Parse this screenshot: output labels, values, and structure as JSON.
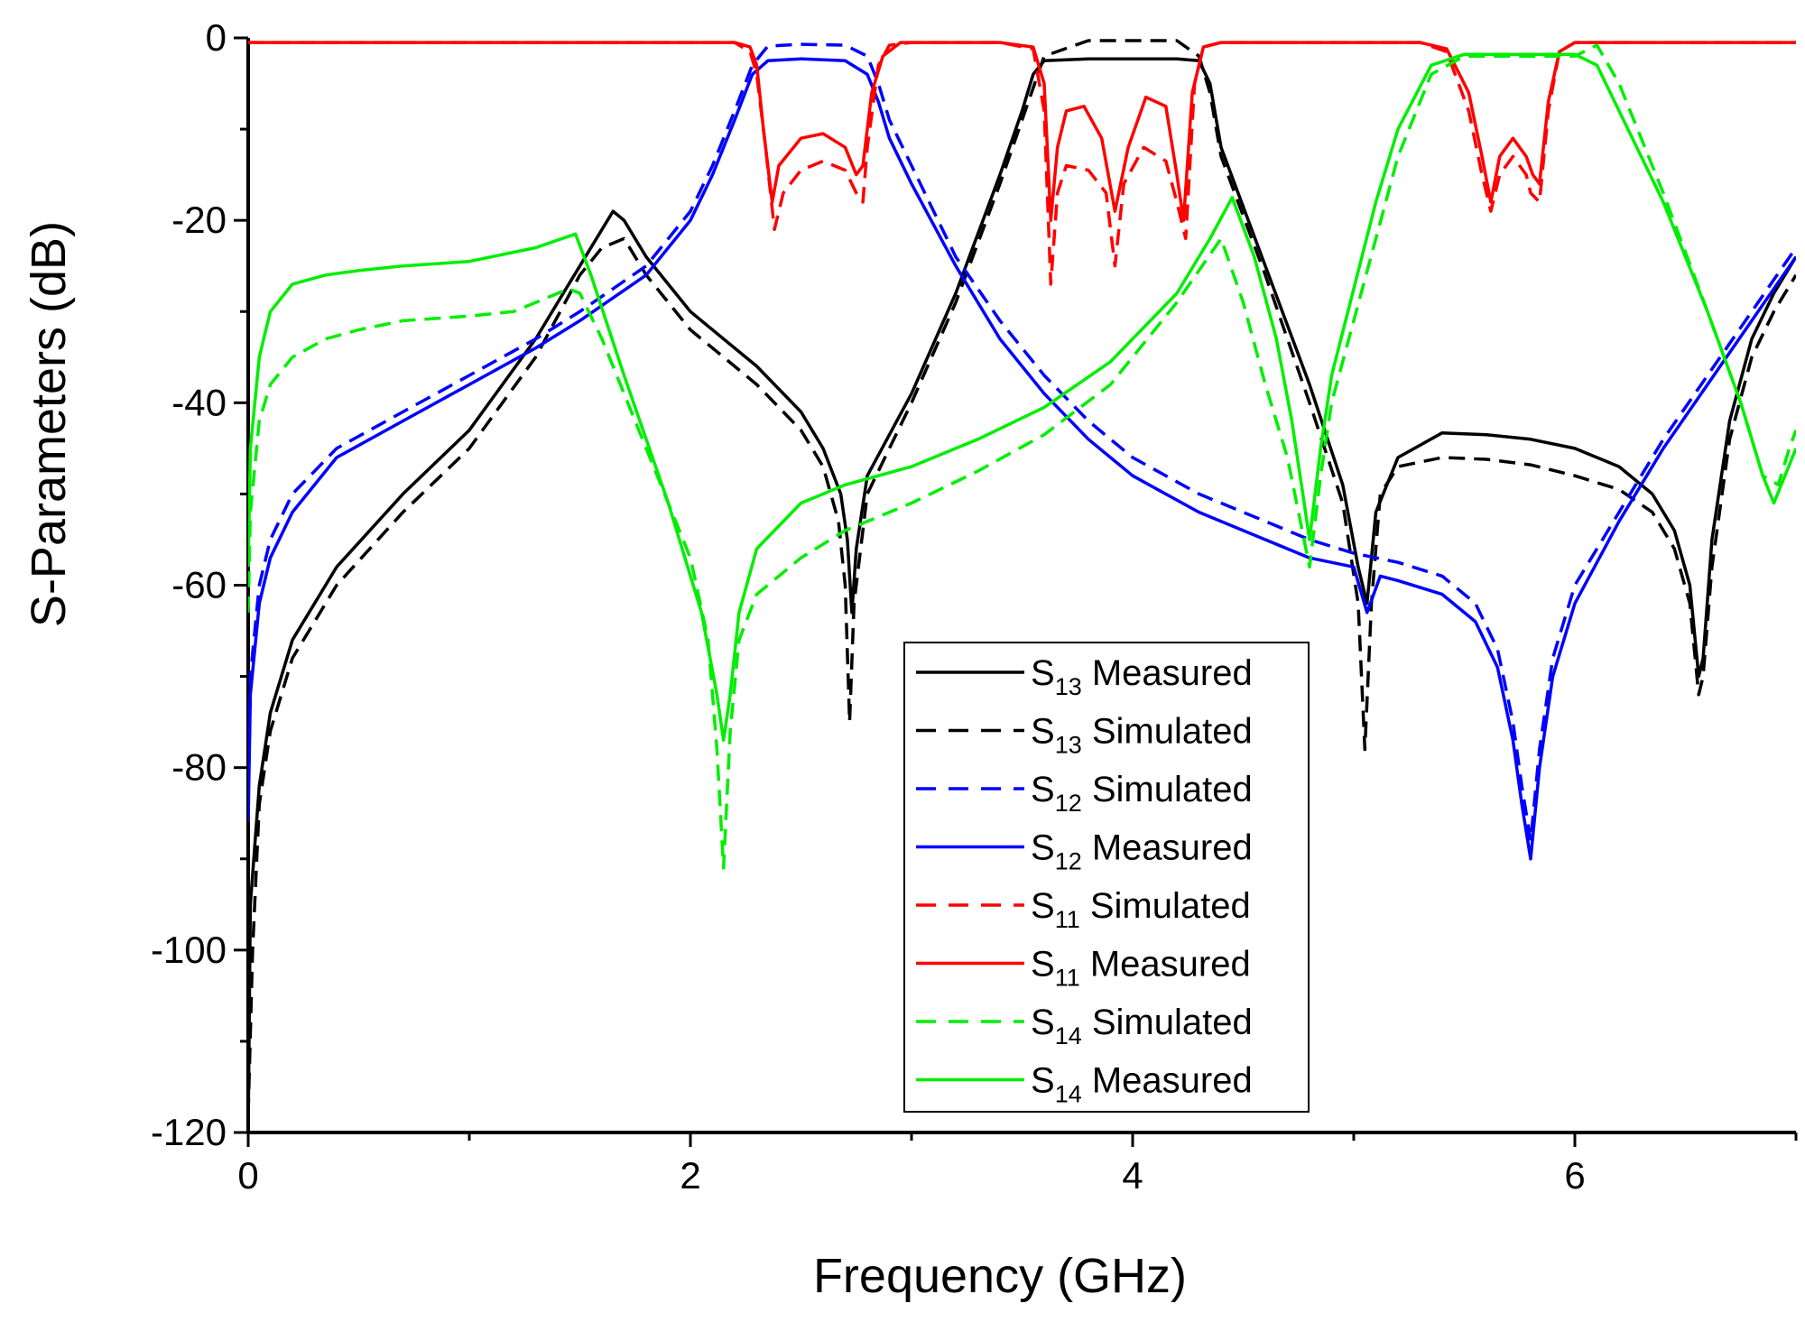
{
  "chart_data": {
    "type": "line",
    "title": "",
    "xlabel": "Frequency (GHz)",
    "ylabel": "S-Parameters (dB)",
    "xlim": [
      0,
      7
    ],
    "ylim": [
      -120,
      0
    ],
    "xticks": [
      0,
      2,
      4,
      6
    ],
    "yticks": [
      0,
      -20,
      -40,
      -60,
      -80,
      -100,
      -120
    ],
    "grid": false,
    "legend_position": "center-bottom",
    "series": [
      {
        "name": "S13 Measured",
        "param": "S",
        "sub": "13",
        "label": "Measured",
        "color": "#000000",
        "dash": "solid",
        "x": [
          0.0,
          0.01,
          0.05,
          0.1,
          0.2,
          0.4,
          0.7,
          1.0,
          1.3,
          1.5,
          1.6,
          1.65,
          1.7,
          1.8,
          2.0,
          2.3,
          2.5,
          2.6,
          2.68,
          2.71,
          2.73,
          2.75,
          2.8,
          3.0,
          3.2,
          3.4,
          3.5,
          3.55,
          3.6,
          3.8,
          4.0,
          4.2,
          4.3,
          4.35,
          4.4,
          4.6,
          4.8,
          4.95,
          5.02,
          5.06,
          5.1,
          5.2,
          5.4,
          5.6,
          5.8,
          6.0,
          6.2,
          6.35,
          6.45,
          6.52,
          6.56,
          6.58,
          6.62,
          6.7,
          6.8,
          6.9,
          7.0
        ],
        "y": [
          -120,
          -95,
          -82,
          -74,
          -66,
          -58,
          -50,
          -43,
          -33,
          -25,
          -21,
          -19,
          -20,
          -24,
          -30,
          -36,
          -41,
          -45,
          -50,
          -55,
          -63,
          -56,
          -48,
          -39,
          -28,
          -15,
          -8,
          -4,
          -2.5,
          -2.3,
          -2.3,
          -2.3,
          -2.5,
          -5,
          -12,
          -25,
          -38,
          -49,
          -58,
          -62,
          -52,
          -46,
          -43.3,
          -43.5,
          -44,
          -45,
          -47,
          -50,
          -54,
          -60,
          -70,
          -68,
          -55,
          -42,
          -33,
          -28,
          -24
        ]
      },
      {
        "name": "S13 Simulated",
        "param": "S",
        "sub": "13",
        "label": "Simulated",
        "color": "#000000",
        "dash": "dashed",
        "x": [
          0.0,
          0.02,
          0.05,
          0.1,
          0.2,
          0.4,
          0.7,
          1.0,
          1.3,
          1.5,
          1.6,
          1.7,
          1.8,
          2.0,
          2.3,
          2.5,
          2.6,
          2.67,
          2.7,
          2.72,
          2.74,
          2.8,
          3.0,
          3.2,
          3.4,
          3.5,
          3.6,
          3.8,
          4.0,
          4.2,
          4.3,
          4.35,
          4.4,
          4.6,
          4.8,
          4.95,
          5.02,
          5.05,
          5.08,
          5.12,
          5.2,
          5.4,
          5.6,
          5.8,
          6.0,
          6.2,
          6.35,
          6.45,
          6.52,
          6.56,
          6.58,
          6.62,
          6.7,
          6.8,
          6.9,
          7.0
        ],
        "y": [
          -118,
          -100,
          -84,
          -76,
          -68,
          -60,
          -52,
          -45,
          -35,
          -26,
          -23,
          -22,
          -26,
          -32,
          -38,
          -43,
          -47,
          -53,
          -60,
          -75,
          -62,
          -50,
          -40,
          -29,
          -16,
          -9,
          -2,
          -0.3,
          -0.3,
          -0.3,
          -2,
          -6,
          -13,
          -26,
          -40,
          -51,
          -62,
          -78,
          -62,
          -50,
          -47,
          -46,
          -46.2,
          -46.8,
          -48,
          -49.5,
          -52,
          -56,
          -62,
          -72,
          -70,
          -58,
          -44,
          -35,
          -30,
          -26
        ]
      },
      {
        "name": "S12 Simulated",
        "param": "S",
        "sub": "12",
        "label": "Simulated",
        "color": "#0000ff",
        "dash": "dashed",
        "x": [
          0.0,
          0.01,
          0.05,
          0.1,
          0.2,
          0.4,
          0.7,
          1.0,
          1.3,
          1.5,
          1.8,
          2.0,
          2.1,
          2.2,
          2.28,
          2.35,
          2.5,
          2.7,
          2.8,
          2.85,
          2.9,
          3.0,
          3.2,
          3.4,
          3.6,
          3.8,
          4.0,
          4.3,
          4.6,
          4.8,
          5.0,
          5.2,
          5.4,
          5.55,
          5.65,
          5.72,
          5.76,
          5.8,
          5.84,
          5.9,
          6.0,
          6.2,
          6.4,
          6.6,
          6.8,
          7.0
        ],
        "y": [
          -85,
          -70,
          -60,
          -55,
          -50,
          -45,
          -41,
          -37,
          -33,
          -30,
          -25,
          -19,
          -14,
          -8,
          -3,
          -0.9,
          -0.7,
          -0.8,
          -2,
          -5,
          -9,
          -14,
          -24,
          -31,
          -37,
          -42,
          -46,
          -50,
          -53,
          -55,
          -56.5,
          -57.5,
          -59,
          -62,
          -67,
          -75,
          -82,
          -88,
          -78,
          -68,
          -60,
          -52,
          -44,
          -37,
          -30,
          -23
        ]
      },
      {
        "name": "S12 Measured",
        "param": "S",
        "sub": "12",
        "label": "Measured",
        "color": "#0000ff",
        "dash": "solid",
        "x": [
          0.0,
          0.01,
          0.05,
          0.1,
          0.2,
          0.4,
          0.7,
          1.0,
          1.3,
          1.5,
          1.8,
          2.0,
          2.1,
          2.2,
          2.28,
          2.35,
          2.5,
          2.7,
          2.8,
          2.85,
          2.9,
          3.0,
          3.2,
          3.4,
          3.6,
          3.8,
          4.0,
          4.3,
          4.6,
          4.8,
          5.0,
          5.06,
          5.12,
          5.2,
          5.4,
          5.55,
          5.65,
          5.72,
          5.76,
          5.8,
          5.84,
          5.9,
          6.0,
          6.2,
          6.4,
          6.6,
          6.8,
          7.0
        ],
        "y": [
          -86,
          -72,
          -62,
          -57,
          -52,
          -46,
          -42,
          -38,
          -34,
          -31,
          -26,
          -20,
          -15,
          -9,
          -4,
          -2.5,
          -2.3,
          -2.5,
          -4,
          -7,
          -11,
          -16,
          -25,
          -33,
          -39,
          -44,
          -48,
          -52,
          -55,
          -57,
          -58,
          -63,
          -59,
          -59.5,
          -61,
          -64,
          -69,
          -77,
          -84,
          -90,
          -80,
          -70,
          -62,
          -53,
          -45,
          -38,
          -31,
          -24
        ]
      },
      {
        "name": "S11 Simulated",
        "param": "S",
        "sub": "11",
        "label": "Simulated",
        "color": "#ff0000",
        "dash": "dashed",
        "x": [
          0.0,
          2.2,
          2.27,
          2.3,
          2.34,
          2.38,
          2.42,
          2.5,
          2.6,
          2.7,
          2.75,
          2.78,
          2.8,
          2.85,
          2.9,
          3.0,
          3.4,
          3.55,
          3.6,
          3.63,
          3.66,
          3.7,
          3.8,
          3.88,
          3.92,
          3.96,
          4.05,
          4.15,
          4.2,
          4.24,
          4.28,
          4.32,
          4.4,
          5.3,
          5.42,
          5.52,
          5.58,
          5.62,
          5.66,
          5.72,
          5.78,
          5.8,
          5.84,
          5.88,
          5.93,
          6.0,
          7.0
        ],
        "y": [
          -0.5,
          -0.5,
          -1.5,
          -4,
          -12,
          -21,
          -17,
          -14.5,
          -13.5,
          -14.5,
          -17,
          -18,
          -12,
          -3,
          -0.8,
          -0.5,
          -0.5,
          -1.2,
          -8,
          -27,
          -17,
          -14,
          -14.5,
          -17,
          -25,
          -16,
          -12,
          -13.5,
          -18,
          -22,
          -5,
          -1,
          -0.5,
          -0.5,
          -1.5,
          -8,
          -15,
          -19,
          -15,
          -13,
          -15,
          -17,
          -18,
          -8,
          -1.5,
          -0.5,
          -0.5
        ]
      },
      {
        "name": "S11 Measured",
        "param": "S",
        "sub": "11",
        "label": "Measured",
        "color": "#ff0000",
        "dash": "solid",
        "x": [
          0.0,
          2.2,
          2.27,
          2.3,
          2.33,
          2.37,
          2.4,
          2.5,
          2.6,
          2.7,
          2.75,
          2.78,
          2.82,
          2.87,
          2.95,
          3.0,
          3.4,
          3.55,
          3.6,
          3.63,
          3.66,
          3.7,
          3.78,
          3.86,
          3.92,
          3.98,
          4.06,
          4.15,
          4.2,
          4.23,
          4.27,
          4.32,
          4.4,
          5.3,
          5.42,
          5.52,
          5.58,
          5.62,
          5.66,
          5.72,
          5.78,
          5.81,
          5.84,
          5.88,
          5.93,
          6.0,
          7.0
        ],
        "y": [
          -0.5,
          -0.5,
          -1,
          -3,
          -10,
          -18,
          -14,
          -11,
          -10.5,
          -12,
          -15,
          -14,
          -6,
          -2,
          -0.5,
          -0.5,
          -0.5,
          -1,
          -5,
          -20,
          -12,
          -8,
          -7.5,
          -11,
          -19,
          -12,
          -6.5,
          -7.5,
          -15,
          -20,
          -6,
          -1,
          -0.5,
          -0.5,
          -1.2,
          -6,
          -13,
          -18,
          -13,
          -11,
          -13,
          -15,
          -16,
          -7,
          -1.5,
          -0.5,
          -0.5
        ]
      },
      {
        "name": "S14 Simulated",
        "param": "S",
        "sub": "14",
        "label": "Simulated",
        "color": "#00ee00",
        "dash": "dashed",
        "x": [
          0.0,
          0.01,
          0.05,
          0.1,
          0.2,
          0.35,
          0.5,
          0.7,
          1.0,
          1.2,
          1.45,
          1.5,
          1.6,
          1.8,
          2.0,
          2.08,
          2.12,
          2.15,
          2.18,
          2.22,
          2.3,
          2.5,
          2.7,
          3.0,
          3.3,
          3.6,
          3.9,
          4.2,
          4.4,
          4.5,
          4.6,
          4.7,
          4.75,
          4.8,
          4.85,
          4.9,
          5.1,
          5.2,
          5.35,
          5.5,
          5.8,
          6.0,
          6.1,
          6.2,
          6.4,
          6.6,
          6.75,
          6.85,
          6.92,
          6.97,
          7.0
        ],
        "y": [
          -63,
          -52,
          -42,
          -38,
          -35,
          -33,
          -32,
          -31,
          -30.5,
          -30,
          -27.5,
          -28,
          -33,
          -45,
          -57,
          -66,
          -78,
          -91,
          -76,
          -66,
          -61,
          -57,
          -54,
          -51,
          -47.5,
          -43.5,
          -38,
          -29,
          -22,
          -29,
          -38,
          -46,
          -52,
          -58,
          -48,
          -40,
          -22,
          -13,
          -4,
          -2,
          -2,
          -2,
          -0.8,
          -5,
          -17,
          -30,
          -40,
          -48,
          -49,
          -45,
          -43
        ]
      },
      {
        "name": "S14 Measured",
        "param": "S",
        "sub": "14",
        "label": "Measured",
        "color": "#00ee00",
        "dash": "solid",
        "x": [
          0.0,
          0.01,
          0.05,
          0.1,
          0.2,
          0.35,
          0.5,
          0.7,
          1.0,
          1.3,
          1.48,
          1.55,
          1.7,
          1.9,
          2.05,
          2.12,
          2.15,
          2.18,
          2.22,
          2.3,
          2.5,
          2.7,
          3.0,
          3.3,
          3.6,
          3.9,
          4.2,
          4.35,
          4.45,
          4.55,
          4.65,
          4.72,
          4.77,
          4.8,
          4.85,
          4.9,
          5.1,
          5.2,
          5.35,
          5.5,
          5.8,
          6.0,
          6.1,
          6.2,
          6.4,
          6.6,
          6.75,
          6.85,
          6.9,
          6.95,
          7.0
        ],
        "y": [
          -58,
          -45,
          -35,
          -30,
          -27,
          -26,
          -25.5,
          -25,
          -24.5,
          -23,
          -21.5,
          -26,
          -37,
          -51,
          -63,
          -72,
          -77,
          -72,
          -63,
          -56,
          -51,
          -49,
          -47,
          -44,
          -40.5,
          -35.5,
          -28,
          -22,
          -17.5,
          -24,
          -33,
          -42,
          -50,
          -55,
          -45,
          -37,
          -18,
          -10,
          -3,
          -1.8,
          -1.8,
          -1.8,
          -3,
          -8,
          -18,
          -30,
          -40,
          -48,
          -51,
          -48,
          -45
        ]
      }
    ]
  }
}
